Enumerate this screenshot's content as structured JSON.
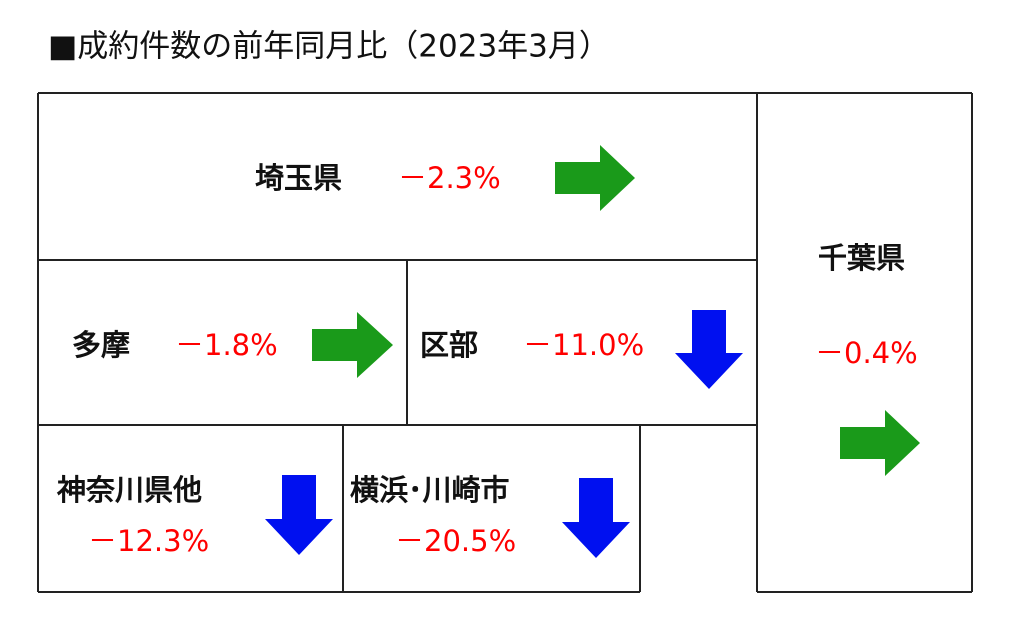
{
  "title": "■成約件数の前年同月比（2023年3月）",
  "regions": [
    {
      "label": "埼玉県",
      "change": "－2.3%"
    },
    {
      "label": "千葉県",
      "change": "－0.4%"
    },
    {
      "label": "多摩",
      "change": "－1.8%"
    },
    {
      "label": "区部",
      "change": "－11.0%"
    },
    {
      "label": "神奈川県他",
      "change": "－12.3%"
    },
    {
      "label": "横浜･川崎市",
      "change": "－20.5%"
    }
  ]
}
